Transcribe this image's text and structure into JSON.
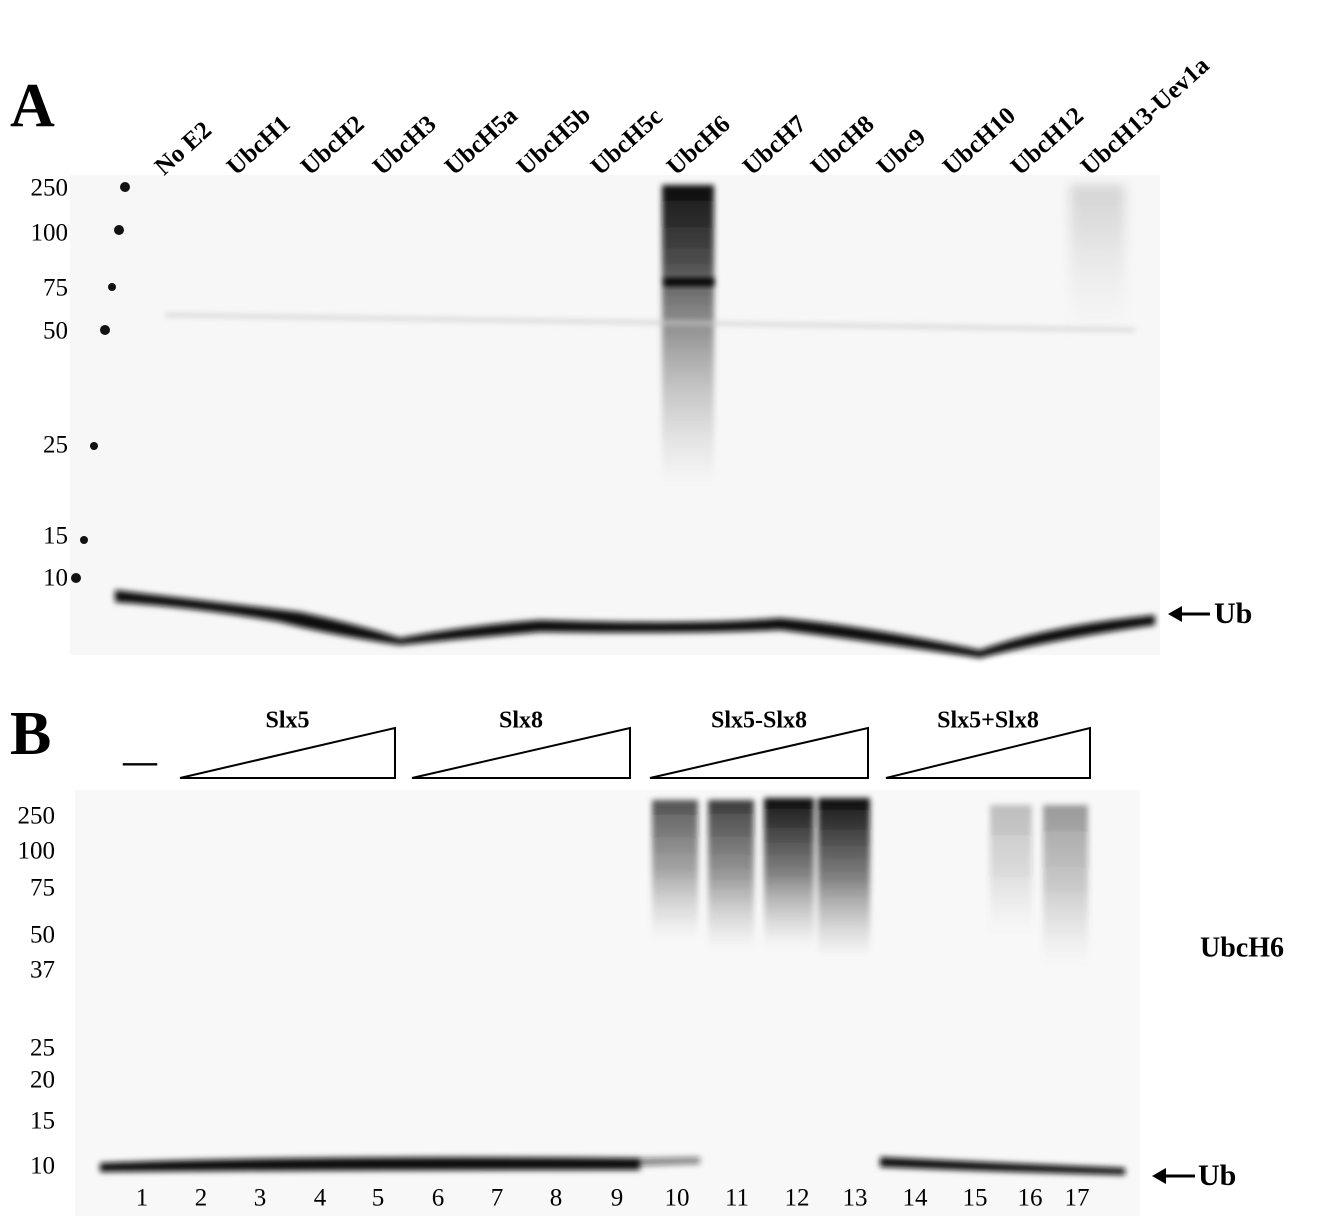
{
  "panel_a": {
    "label": "A",
    "lane_labels": [
      "No E2",
      "UbcH1",
      "UbcH2",
      "UbcH3",
      "UbcH5a",
      "UbcH5b",
      "UbcH5c",
      "UbcH6",
      "UbcH7",
      "UbcH8",
      "Ubc9",
      "UbcH10",
      "UbcH12",
      "UbcH13-Uev1a"
    ],
    "markers": [
      "250",
      "100",
      "75",
      "50",
      "25",
      "15",
      "10"
    ],
    "band_label": "Ub"
  },
  "panel_b": {
    "label": "B",
    "control_label": "—",
    "groups": [
      "Slx5",
      "Slx8",
      "Slx5-Slx8",
      "Slx5+Slx8"
    ],
    "markers": [
      "250",
      "100",
      "75",
      "50",
      "37",
      "25",
      "20",
      "15",
      "10"
    ],
    "lanes": [
      "1",
      "2",
      "3",
      "4",
      "5",
      "6",
      "7",
      "8",
      "9",
      "10",
      "11",
      "12",
      "13",
      "14",
      "15",
      "16",
      "17"
    ],
    "antibody_label": "UbcH6",
    "band_label": "Ub"
  }
}
